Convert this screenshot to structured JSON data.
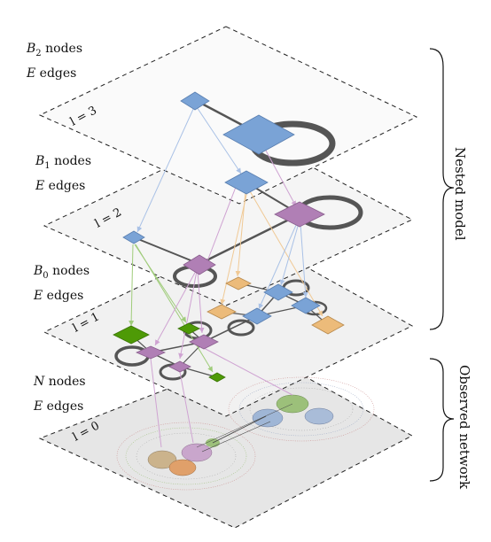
{
  "layers": [
    {
      "id": "l3",
      "label": "l = 3",
      "line1_var": "B",
      "line1_sub": "2",
      "line1_rest": " nodes",
      "line2_var": "E",
      "line2_rest": " edges"
    },
    {
      "id": "l2",
      "label": "l = 2",
      "line1_var": "B",
      "line1_sub": "1",
      "line1_rest": " nodes",
      "line2_var": "E",
      "line2_rest": " edges"
    },
    {
      "id": "l1",
      "label": "l = 1",
      "line1_var": "B",
      "line1_sub": "0",
      "line1_rest": " nodes",
      "line2_var": "E",
      "line2_rest": " edges"
    },
    {
      "id": "l0",
      "label": "l = 0",
      "line1_var": "N",
      "line1_sub": "",
      "line1_rest": " nodes",
      "line2_var": "E",
      "line2_rest": " edges"
    }
  ],
  "braces": {
    "nested_model": "Nested model",
    "observed_network": "Observed network"
  },
  "colors": {
    "blue": "#7aa3d6",
    "purple": "#b07fb5",
    "orange": "#ecbb7a",
    "green": "#4e9a06",
    "edge": "#555555",
    "plane_top": "#fafafa",
    "plane_bottom": "#e6e6e6"
  }
}
